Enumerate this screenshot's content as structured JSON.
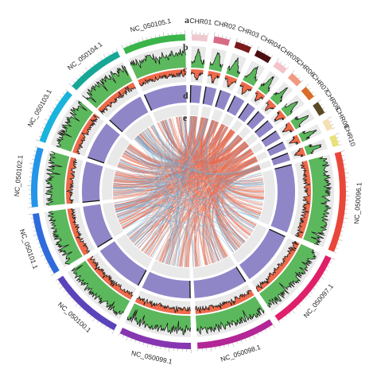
{
  "chromosomes": [
    {
      "name": "CHR01",
      "color": "#f0c9cf",
      "w": 5
    },
    {
      "name": "CHR02",
      "color": "#d96a84",
      "w": 5
    },
    {
      "name": "CHR03",
      "color": "#7a1a1a",
      "w": 5
    },
    {
      "name": "CHR04",
      "color": "#4a0f0f",
      "w": 5
    },
    {
      "name": "CHR05",
      "color": "#f3c3c7",
      "w": 4
    },
    {
      "name": "CHR06",
      "color": "#f29a80",
      "w": 4
    },
    {
      "name": "CHR07",
      "color": "#d96d27",
      "w": 4
    },
    {
      "name": "CHR08",
      "color": "#5b4a24",
      "w": 4
    },
    {
      "name": "CHR09",
      "color": "#f6dfb4",
      "w": 3.5
    },
    {
      "name": "CHR10",
      "color": "#e8e07a",
      "w": 3.5
    },
    {
      "name": "NC_050096.1",
      "color": "#e9473a",
      "w": 32
    },
    {
      "name": "NC_050097.1",
      "color": "#e01f6a",
      "w": 26
    },
    {
      "name": "NC_050098.1",
      "color": "#b32696",
      "w": 25
    },
    {
      "name": "NC_050099.1",
      "color": "#8736b2",
      "w": 23
    },
    {
      "name": "NC_050100.1",
      "color": "#5b43ba",
      "w": 24
    },
    {
      "name": "NC_050101.1",
      "color": "#2f6bdc",
      "w": 20
    },
    {
      "name": "NC_050102.1",
      "color": "#2495e8",
      "w": 19
    },
    {
      "name": "NC_050103.1",
      "color": "#19b3dc",
      "w": 18
    },
    {
      "name": "NC_050104.1",
      "color": "#16a796",
      "w": 18
    },
    {
      "name": "NC_050105.1",
      "color": "#3bb54a",
      "w": 20
    }
  ],
  "track_labels": [
    "a",
    "b",
    "c",
    "d",
    "e"
  ],
  "colors": {
    "density_fill": "#5cb85c",
    "density_line": "#111111",
    "orange_fill": "#ee6a4a",
    "purple_fill": "#8f86c8",
    "track_bg": "#e9e9e9",
    "link_colors": [
      "#ef6b4f",
      "#f08a6e",
      "#e85a3c",
      "#58a6d8",
      "#8fc3e6",
      "#c9c9c9"
    ]
  }
}
